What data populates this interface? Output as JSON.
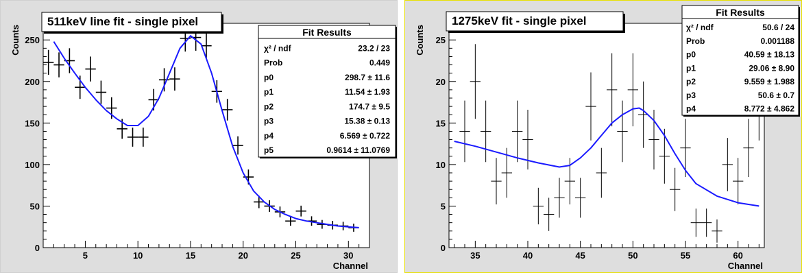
{
  "panels": [
    {
      "id": "left",
      "title": "511keV line fit - single pixel",
      "ylabel": "Counts",
      "xlabel": "Channel",
      "stats": {
        "header": "Fit Results",
        "rows": [
          {
            "name": "χ² / ndf",
            "value": "23.2 / 23"
          },
          {
            "name": "Prob",
            "value": "0.449"
          },
          {
            "name": "p0",
            "value": "298.7 ± 11.6"
          },
          {
            "name": "p1",
            "value": "11.54 ± 1.93"
          },
          {
            "name": "p2",
            "value": "174.7 ± 9.5"
          },
          {
            "name": "p3",
            "value": "15.38 ± 0.13"
          },
          {
            "name": "p4",
            "value": "6.569 ± 0.722"
          },
          {
            "name": "p5",
            "value": "0.9614 ± 11.0769"
          }
        ]
      }
    },
    {
      "id": "right",
      "title": "1275keV fit - single pixel",
      "ylabel": "Counts",
      "xlabel": "Channel",
      "stats": {
        "header": "Fit Results",
        "rows": [
          {
            "name": "χ² / ndf",
            "value": "50.6 / 24"
          },
          {
            "name": "Prob",
            "value": "0.001188"
          },
          {
            "name": "p0",
            "value": "40.59 ± 18.13"
          },
          {
            "name": "p1",
            "value": "29.06 ± 8.90"
          },
          {
            "name": "p2",
            "value": "9.559 ± 1.988"
          },
          {
            "name": "p3",
            "value": "50.6 ± 0.7"
          },
          {
            "name": "p4",
            "value": "8.772 ± 4.862"
          }
        ]
      }
    }
  ],
  "chart_data": [
    {
      "type": "scatter",
      "title": "511keV line fit - single pixel",
      "xlabel": "Channel",
      "ylabel": "Counts",
      "xlim": [
        1,
        32
      ],
      "ylim": [
        0,
        270
      ],
      "xticks": [
        5,
        10,
        15,
        20,
        25,
        30
      ],
      "yticks": [
        0,
        50,
        100,
        150,
        200,
        250
      ],
      "grid": false,
      "points": {
        "x": [
          1.5,
          2.5,
          3.5,
          4.5,
          5.5,
          6.5,
          7.5,
          8.5,
          9.5,
          10.5,
          11.5,
          12.5,
          13.5,
          14.5,
          15.5,
          16.5,
          17.5,
          18.5,
          19.5,
          20.5,
          21.5,
          22.5,
          23.5,
          24.5,
          25.5,
          26.5,
          27.5,
          28.5,
          29.5,
          30.5
        ],
        "y": [
          223,
          220,
          225,
          193,
          215,
          187,
          168,
          143,
          133,
          133,
          178,
          202,
          203,
          252,
          253,
          243,
          188,
          166,
          123,
          85,
          55,
          50,
          43,
          32,
          44,
          32,
          28,
          27,
          26,
          24
        ],
        "yerr": [
          15,
          15,
          15,
          14,
          15,
          14,
          13,
          12,
          11.5,
          11.5,
          13,
          14,
          14,
          16,
          16,
          15.5,
          13.5,
          13,
          11,
          9,
          7.5,
          7,
          6.5,
          5.7,
          6.5,
          5.7,
          5.3,
          5.2,
          5.1,
          4.9
        ],
        "xerr": 0.5
      },
      "fit": {
        "x": [
          2,
          3,
          4,
          5,
          6,
          7,
          8,
          9,
          10,
          11,
          12,
          13,
          14,
          15,
          16,
          17,
          18,
          19,
          20,
          21,
          22,
          23,
          24,
          25,
          26,
          27,
          28,
          29,
          30,
          31
        ],
        "y": [
          248,
          228,
          210,
          193,
          178,
          165,
          155,
          147,
          147,
          158,
          180,
          210,
          240,
          255,
          245,
          210,
          165,
          122,
          90,
          68,
          55,
          46,
          40,
          35,
          32,
          30,
          28,
          26,
          25,
          24
        ]
      }
    },
    {
      "type": "scatter",
      "title": "1275keV fit - single pixel",
      "xlabel": "Channel",
      "ylabel": "Counts",
      "xlim": [
        32.5,
        62.5
      ],
      "ylim": [
        0,
        27
      ],
      "xticks": [
        35,
        40,
        45,
        50,
        55,
        60
      ],
      "yticks": [
        0,
        5,
        10,
        15,
        20,
        25
      ],
      "grid": false,
      "points": {
        "x": [
          34,
          35,
          36,
          37,
          38,
          39,
          40,
          41,
          42,
          43,
          44,
          45,
          46,
          47,
          48,
          49,
          50,
          51,
          52,
          53,
          54,
          55,
          56,
          57,
          58,
          59,
          60,
          61,
          62
        ],
        "y": [
          14,
          20,
          14,
          8,
          9,
          14,
          13,
          5,
          4,
          6,
          8,
          6,
          17,
          9,
          19,
          14,
          19,
          16,
          13,
          11,
          7,
          12,
          3,
          3,
          2,
          10,
          8,
          12,
          17
        ],
        "yerr": [
          3.7,
          4.5,
          3.7,
          2.8,
          3,
          3.7,
          3.6,
          2.2,
          2,
          2.4,
          2.8,
          2.4,
          4.1,
          3,
          4.4,
          3.7,
          4.4,
          4,
          3.6,
          3.3,
          2.6,
          3.5,
          1.7,
          1.7,
          1.4,
          3.2,
          2.8,
          3.5,
          4.1
        ],
        "xerr": 0.5
      },
      "fit": {
        "x": [
          33,
          35,
          37,
          39,
          41,
          43,
          44,
          45,
          46,
          47,
          48,
          49,
          50,
          50.6,
          51,
          52,
          53,
          54,
          55,
          56,
          58,
          60,
          62
        ],
        "y": [
          12.8,
          12.2,
          11.5,
          10.8,
          10.2,
          9.7,
          9.9,
          10.8,
          12,
          13.5,
          15,
          16,
          16.7,
          16.8,
          16.5,
          15.3,
          13.5,
          11.3,
          9.3,
          7.7,
          6.2,
          5.4,
          5.0
        ]
      },
      "fit_color": "#1a1aff"
    }
  ],
  "colors": {
    "canvas_bg": "#dedede",
    "plot_bg": "#ffffff",
    "fit_line": "#1a1aff",
    "points": "#000000",
    "right_canvas_border": "#e8e000"
  }
}
